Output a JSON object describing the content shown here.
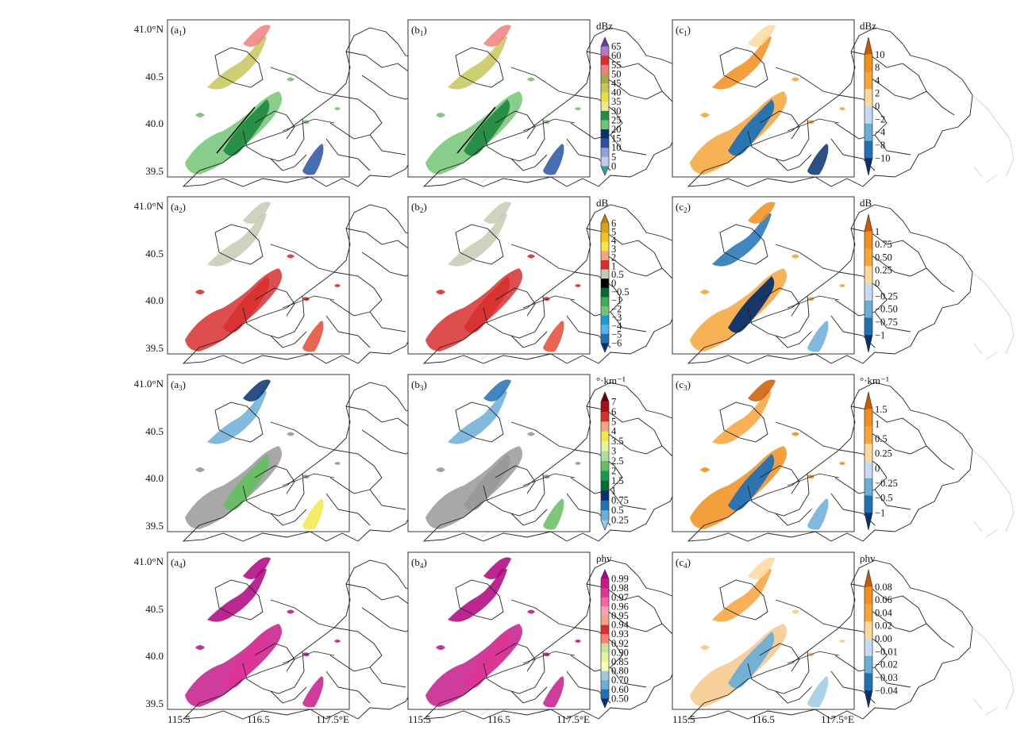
{
  "figure": {
    "x_ticks": [
      "115.5",
      "116.5",
      "117.5°E"
    ],
    "y_ticks": [
      "41.0°N",
      "40.5",
      "40.0",
      "39.5"
    ]
  },
  "rows": [
    {
      "panel_sub": "1",
      "mid_bar": {
        "unit": "dBz",
        "labels": [
          "65",
          "60",
          "55",
          "50",
          "45",
          "40",
          "35",
          "30",
          "25",
          "20",
          "15",
          "10",
          "5",
          "0"
        ],
        "colors": [
          "#6a3d9a",
          "#b07cc6",
          "#d7302f",
          "#f08080",
          "#a6a64c",
          "#c6c65a",
          "#e6e03a",
          "#ede98e",
          "#238b45",
          "#74c476",
          "#08306b",
          "#2953a3",
          "#8fa3d6",
          "#c6cae8",
          "#2aa39b"
        ]
      },
      "right_bar": {
        "unit": "dBz",
        "labels": [
          "10",
          "8",
          "4",
          "2",
          "0",
          "−2",
          "−4",
          "−8",
          "−10"
        ],
        "colors": [
          "#cc5a00",
          "#f28e1b",
          "#f6a53a",
          "#fdd9a0",
          "#c6dbef",
          "#6baed6",
          "#2171b5",
          "#08306b"
        ]
      }
    },
    {
      "panel_sub": "2",
      "mid_bar": {
        "unit": "dB",
        "labels": [
          "6",
          "5",
          "4",
          "3",
          "2",
          "1",
          "0.5",
          "0",
          "−0.5",
          "−1",
          "−2",
          "−3",
          "−4",
          "−5",
          "−6"
        ],
        "colors": [
          "#b8860b",
          "#d9a21c",
          "#f0c419",
          "#f6e64a",
          "#f4a582",
          "#d7302f",
          "#c9c9b5",
          "#000000",
          "#006d2c",
          "#41ab5d",
          "#74c476",
          "#1a9ad6",
          "#56b4e9",
          "#2171b5",
          "#08306b"
        ]
      },
      "right_bar": {
        "unit": "dB",
        "labels": [
          "1",
          "0.75",
          "0.50",
          "0.25",
          "0",
          "−0.25",
          "−0.50",
          "−0.75",
          "−1"
        ],
        "colors": [
          "#cc5a00",
          "#f28e1b",
          "#f6a53a",
          "#fdd9a0",
          "#c6dbef",
          "#6baed6",
          "#2171b5",
          "#08306b"
        ]
      }
    },
    {
      "panel_sub": "3",
      "mid_bar": {
        "unit": "°·km⁻¹",
        "labels": [
          "7",
          "6",
          "5",
          "4",
          "3.5",
          "3",
          "2.5",
          "2",
          "1.5",
          "1",
          "0.75",
          "0.5",
          "0.25"
        ],
        "colors": [
          "#67000d",
          "#a50f15",
          "#d7302f",
          "#f4a582",
          "#f6e64a",
          "#e6f598",
          "#abdda4",
          "#66bd63",
          "#1a9850",
          "#006d2c",
          "#08306b",
          "#2171b5",
          "#6baed6",
          "#9ecae1"
        ]
      },
      "right_bar": {
        "unit": "°·km⁻¹",
        "labels": [
          "1.5",
          "1",
          "0.5",
          "0.25",
          "0",
          "−0.25",
          "−0.5",
          "−1"
        ],
        "colors": [
          "#cc5a00",
          "#f28e1b",
          "#f6a53a",
          "#fdd9a0",
          "#c6dbef",
          "#6baed6",
          "#2171b5",
          "#08306b"
        ]
      }
    },
    {
      "panel_sub": "4",
      "mid_bar": {
        "unit": "ρhv",
        "labels": [
          "0.99",
          "0.98",
          "0.97",
          "0.96",
          "0.95",
          "0.94",
          "0.93",
          "0.92",
          "0.90",
          "0.85",
          "0.80",
          "0.70",
          "0.60",
          "0.50"
        ],
        "colors": [
          "#ae017e",
          "#c51b8a",
          "#dd3497",
          "#f768a1",
          "#fa9fb5",
          "#f4a582",
          "#d7302f",
          "#fb8072",
          "#c2e699",
          "#e6f598",
          "#ffffb2",
          "#9ecae1",
          "#6baed6",
          "#2171b5",
          "#08306b"
        ]
      },
      "right_bar": {
        "unit": "ρhv",
        "labels": [
          "0.08",
          "0.06",
          "0.04",
          "0.02",
          "0.00",
          "−0.01",
          "−0.02",
          "−0.03",
          "−0.04"
        ],
        "colors": [
          "#cc5a00",
          "#f28e1b",
          "#f6a53a",
          "#fdd9a0",
          "#c6dbef",
          "#6baed6",
          "#2171b5",
          "#08306b"
        ]
      }
    }
  ],
  "fields": {
    "row1": {
      "a": [
        "#74c476",
        "#c6c65a",
        "#238b45",
        "#2953a3",
        "#f08080"
      ],
      "b": [
        "#74c476",
        "#c6c65a",
        "#238b45",
        "#2953a3",
        "#f08080"
      ],
      "c": [
        "#f6a53a",
        "#f28e1b",
        "#2171b5",
        "#08306b",
        "#fdd9a0"
      ]
    },
    "row2": {
      "a": [
        "#d7302f",
        "#c9c9b5",
        "#d7302f",
        "#e34a33",
        "#c9c9b5"
      ],
      "b": [
        "#d7302f",
        "#c9c9b5",
        "#d7302f",
        "#e34a33",
        "#c9c9b5"
      ],
      "c": [
        "#f6a53a",
        "#2171b5",
        "#08306b",
        "#6baed6",
        "#f28e1b"
      ]
    },
    "row3": {
      "a": [
        "#999999",
        "#6baed6",
        "#66bd63",
        "#f6e64a",
        "#08306b"
      ],
      "b": [
        "#999999",
        "#6baed6",
        "#999999",
        "#66bd63",
        "#2171b5"
      ],
      "c": [
        "#f28e1b",
        "#f6a53a",
        "#2171b5",
        "#6baed6",
        "#cc5a00"
      ]
    },
    "row4": {
      "a": [
        "#c51b8a",
        "#ae017e",
        "#dd3497",
        "#c51b8a",
        "#ae017e"
      ],
      "b": [
        "#c51b8a",
        "#ae017e",
        "#dd3497",
        "#c51b8a",
        "#ae017e"
      ],
      "c": [
        "#f6c88a",
        "#f6a53a",
        "#6baed6",
        "#9ecae1",
        "#fdd9a0"
      ]
    }
  }
}
